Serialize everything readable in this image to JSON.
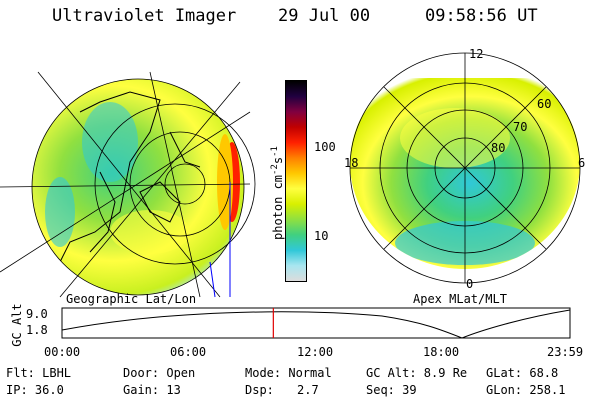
{
  "header": {
    "title": "Ultraviolet Imager",
    "date": "29 Jul 00",
    "time": "09:58:56 UT"
  },
  "colorbar": {
    "label_base": "photon cm",
    "label_exp1": "-2",
    "label_mid": "s",
    "label_exp2": "-1",
    "tick_hi": "100",
    "tick_lo": "10",
    "colors": [
      "#dcdcdc",
      "#a8e6f0",
      "#30c8d8",
      "#40d080",
      "#90e040",
      "#d8f000",
      "#ffff40",
      "#ffc800",
      "#ff8000",
      "#ff2000",
      "#c00000",
      "#800040",
      "#200040",
      "#000000"
    ]
  },
  "left_panel": {
    "caption": "Geographic Lat/Lon"
  },
  "right_panel": {
    "caption": "Apex MLat/MLT",
    "labels": {
      "mlt_12": "12",
      "mlt_18": "18",
      "mlt_6": "6",
      "mlt_0": "0",
      "lat_60": "60",
      "lat_70": "70",
      "lat_80": "80"
    }
  },
  "altitude": {
    "axis_label": "GC Alt",
    "tick_hi": "9.0",
    "tick_lo": "1.8",
    "time_ticks": [
      "00:00",
      "06:00",
      "12:00",
      "18:00",
      "23:59"
    ],
    "current_time_fraction": 0.416,
    "marker_color": "#e00000"
  },
  "footer": {
    "filter": "Flt: LBHL",
    "ip": "IP: 36.0",
    "door": "Door: Open",
    "gain": "Gain: 13",
    "mode": "Mode: Normal",
    "dsp_label": "Dsp:",
    "dsp_value": "2.7",
    "gc_alt": "GC Alt: 8.9 Re",
    "seq": "Seq: 39",
    "glat": "GLat:  68.8",
    "glon": "GLon: 258.1"
  }
}
